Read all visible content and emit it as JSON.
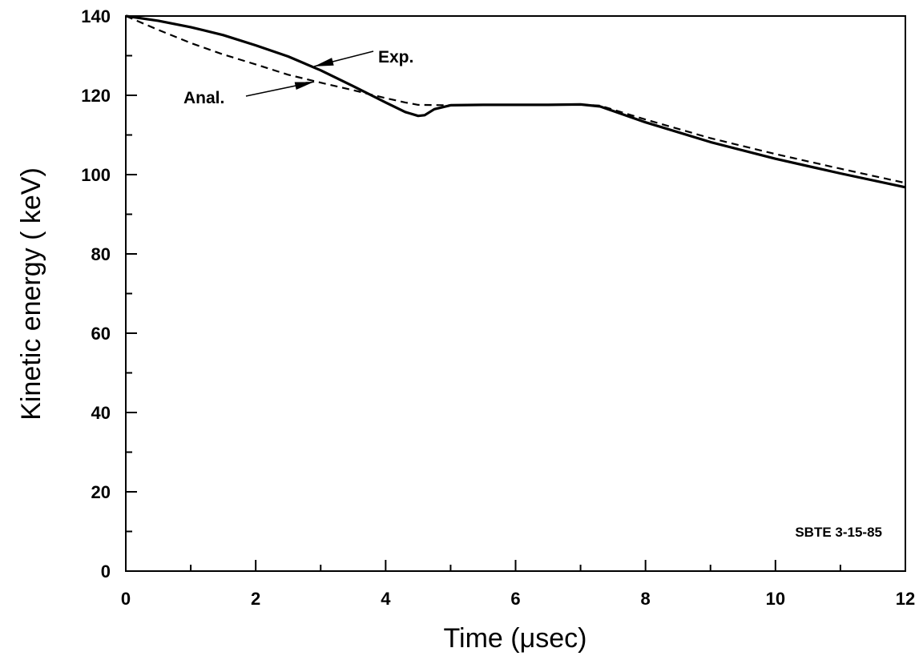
{
  "chart_data": {
    "type": "line",
    "title": "",
    "xlabel": "Time (μsec)",
    "ylabel": "Kinetic energy ( keV)",
    "xlim": [
      0,
      12
    ],
    "ylim": [
      0,
      140
    ],
    "xticks": [
      0,
      2,
      4,
      6,
      8,
      10,
      12
    ],
    "yticks": [
      0,
      20,
      40,
      60,
      80,
      100,
      120,
      140
    ],
    "grid": false,
    "series": [
      {
        "name": "Exp.",
        "style": "solid",
        "x": [
          0,
          0.5,
          1.0,
          1.5,
          2.0,
          2.5,
          3.0,
          3.5,
          4.0,
          4.3,
          4.5,
          4.6,
          4.75,
          5.0,
          5.5,
          6.0,
          6.5,
          7.0,
          7.3,
          8.0,
          9.0,
          10.0,
          11.0,
          12.0
        ],
        "y": [
          140,
          138.8,
          137.2,
          135.2,
          132.6,
          129.8,
          126.3,
          122.3,
          118.2,
          115.8,
          114.8,
          115.0,
          116.5,
          117.5,
          117.6,
          117.6,
          117.6,
          117.7,
          117.2,
          113.2,
          108.2,
          104.0,
          100.3,
          96.8
        ]
      },
      {
        "name": "Anal.",
        "style": "dashed",
        "x": [
          0,
          0.5,
          1.0,
          1.5,
          2.0,
          2.5,
          3.0,
          3.5,
          4.0,
          4.3,
          4.5,
          5.0,
          6.0,
          7.0,
          7.3,
          8.0,
          9.0,
          10.0,
          11.0,
          12.0
        ],
        "y": [
          140,
          136.5,
          133.2,
          130.3,
          127.8,
          125.2,
          123.2,
          121.3,
          119.3,
          118.2,
          117.6,
          117.5,
          117.6,
          117.7,
          117.4,
          113.9,
          109.2,
          105.2,
          101.5,
          97.9
        ]
      }
    ],
    "annotations": [
      {
        "text": "Exp.",
        "target_series": "Exp."
      },
      {
        "text": "Anal.",
        "target_series": "Anal."
      },
      {
        "text": "SBTE 3-15-85"
      }
    ]
  }
}
